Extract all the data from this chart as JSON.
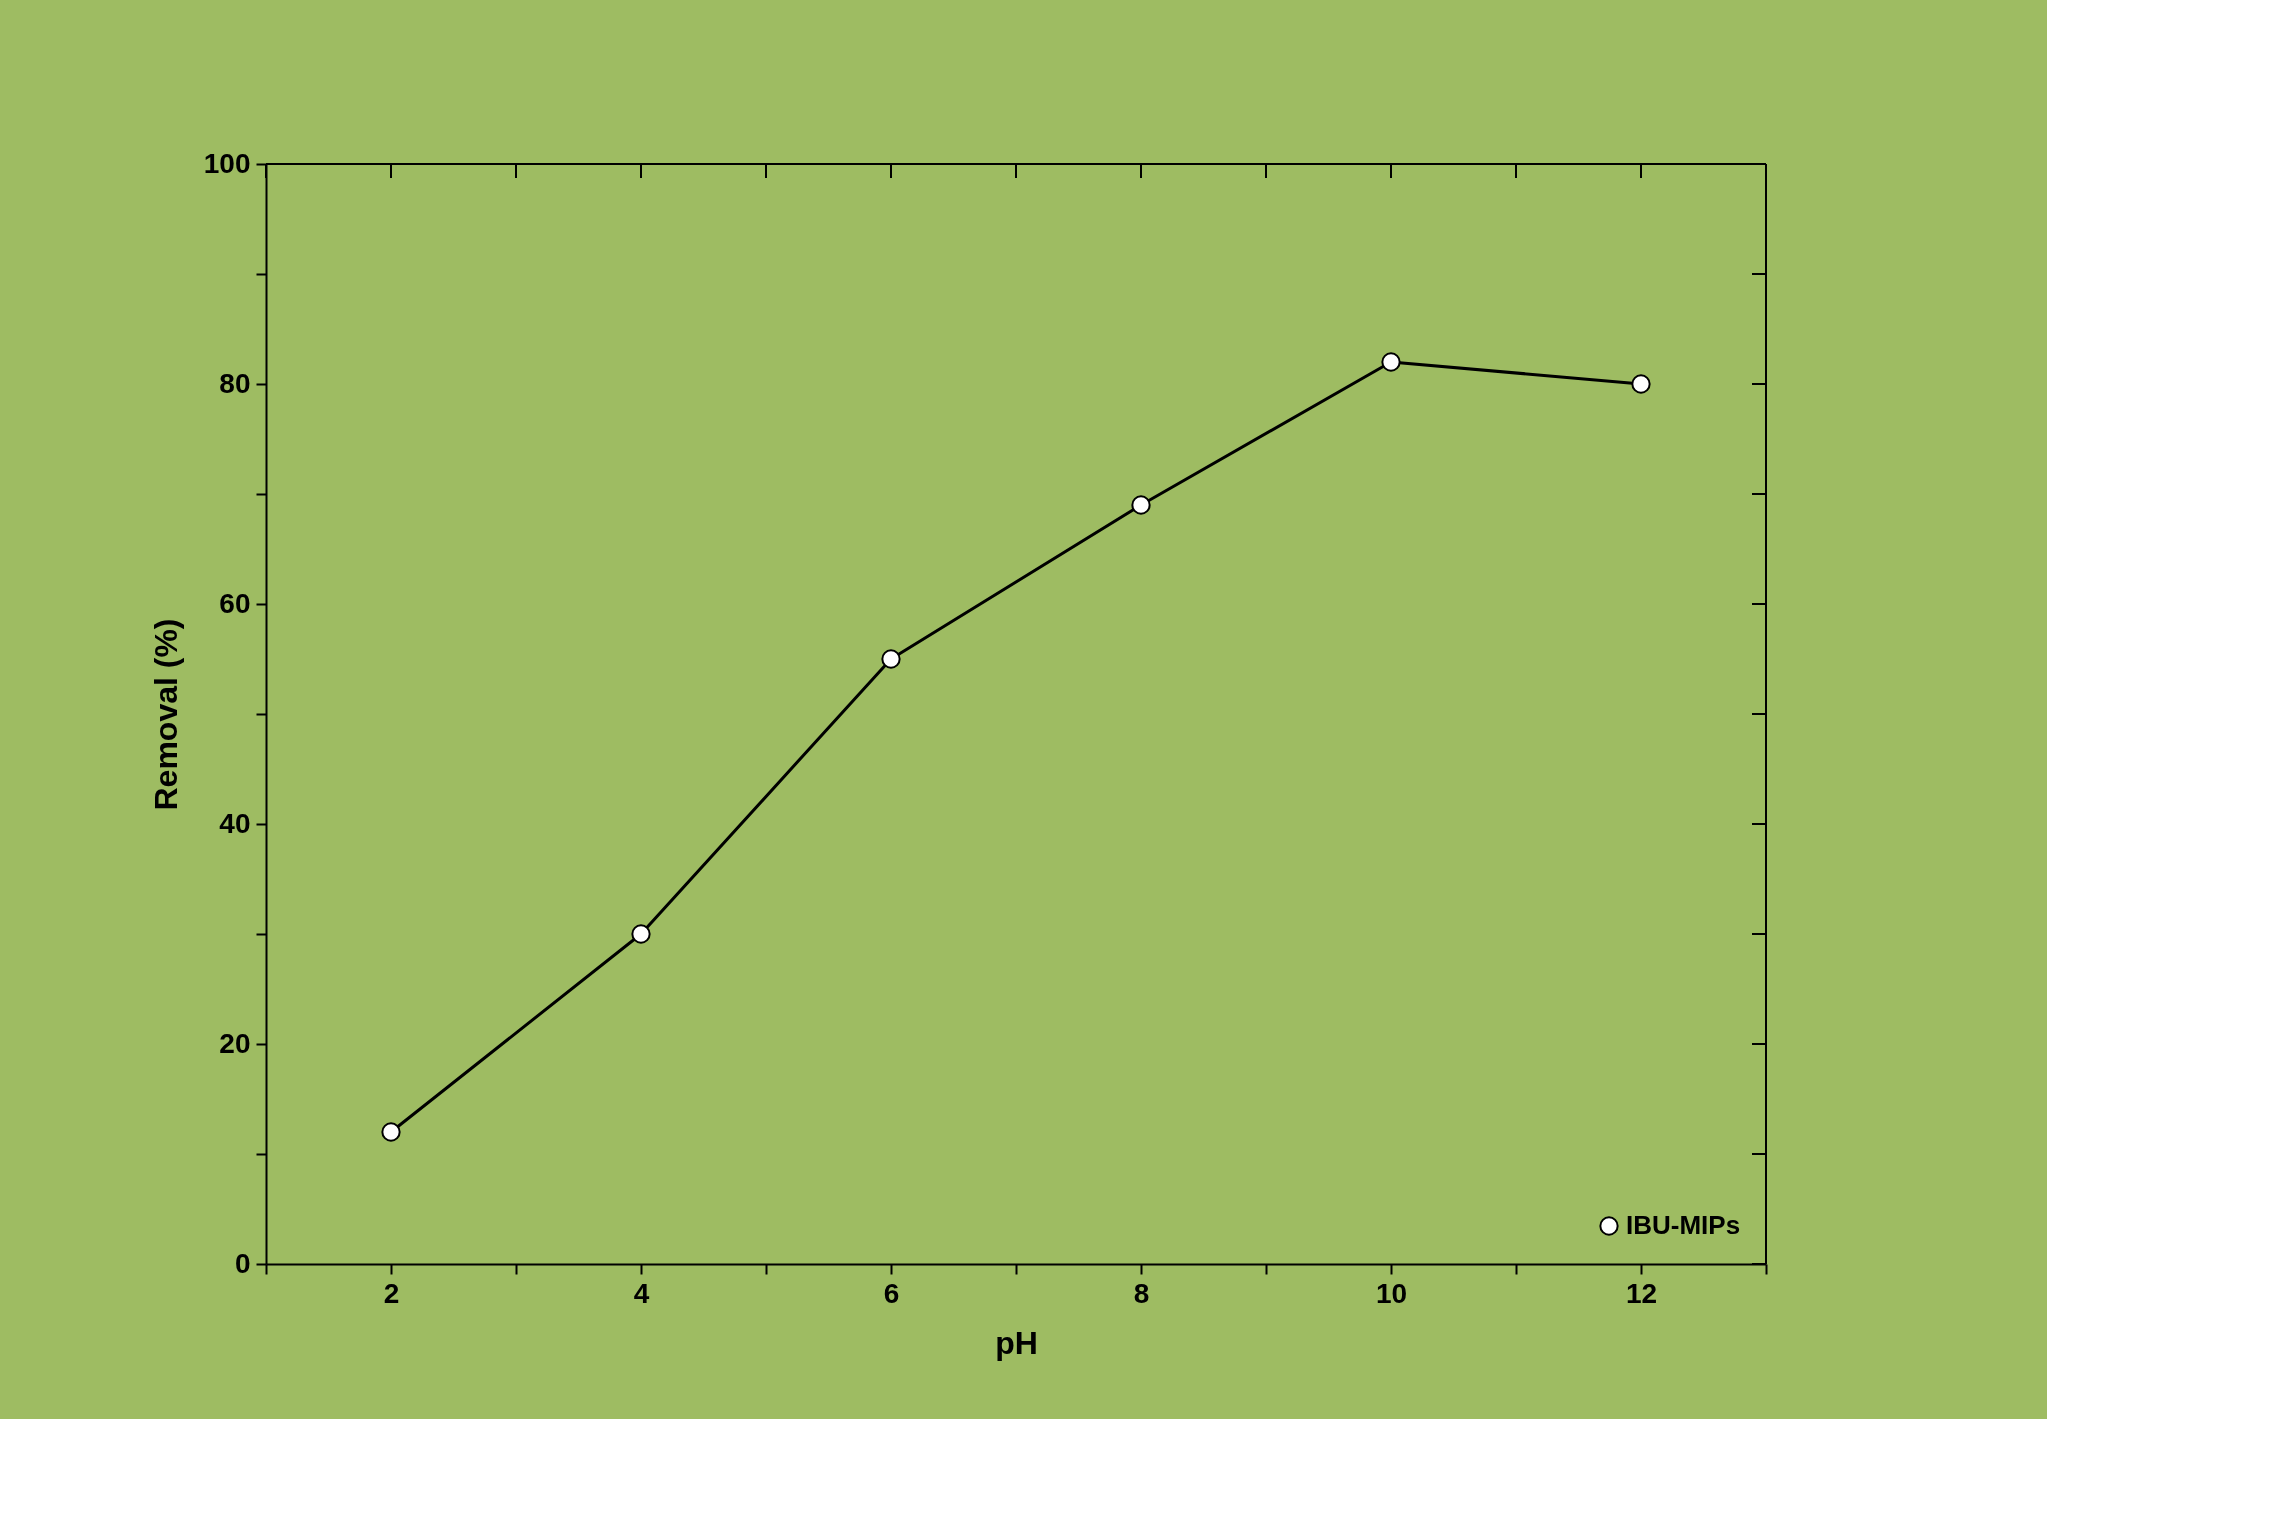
{
  "chart_data": {
    "type": "line",
    "xlabel": "pH",
    "ylabel": "Removal (%)",
    "x": [
      2,
      4,
      6,
      8,
      10,
      12
    ],
    "series": [
      {
        "name": "IBU-MIPs",
        "color": "#000000",
        "values": [
          12,
          30,
          55,
          69,
          82,
          80
        ]
      }
    ],
    "xlim": [
      1,
      13
    ],
    "xticks": [
      {
        "value": 1,
        "label": null
      },
      2,
      {
        "value": 3,
        "label": null
      },
      4,
      {
        "value": 5,
        "label": null
      },
      6,
      {
        "value": 7,
        "label": null
      },
      8,
      {
        "value": 9,
        "label": null
      },
      10,
      {
        "value": 11,
        "label": null
      },
      12,
      {
        "value": 13,
        "label": null
      }
    ],
    "ylim": [
      0,
      100
    ],
    "yticks": [
      0,
      {
        "value": 10,
        "label": null
      },
      20,
      {
        "value": 30,
        "label": null
      },
      40,
      {
        "value": 50,
        "label": null
      },
      60,
      {
        "value": 70,
        "label": null
      },
      80,
      {
        "value": 90,
        "label": null
      },
      100
    ],
    "marker": "circle",
    "line_style": "solid",
    "grid": false,
    "legend": "bottom right"
  }
}
